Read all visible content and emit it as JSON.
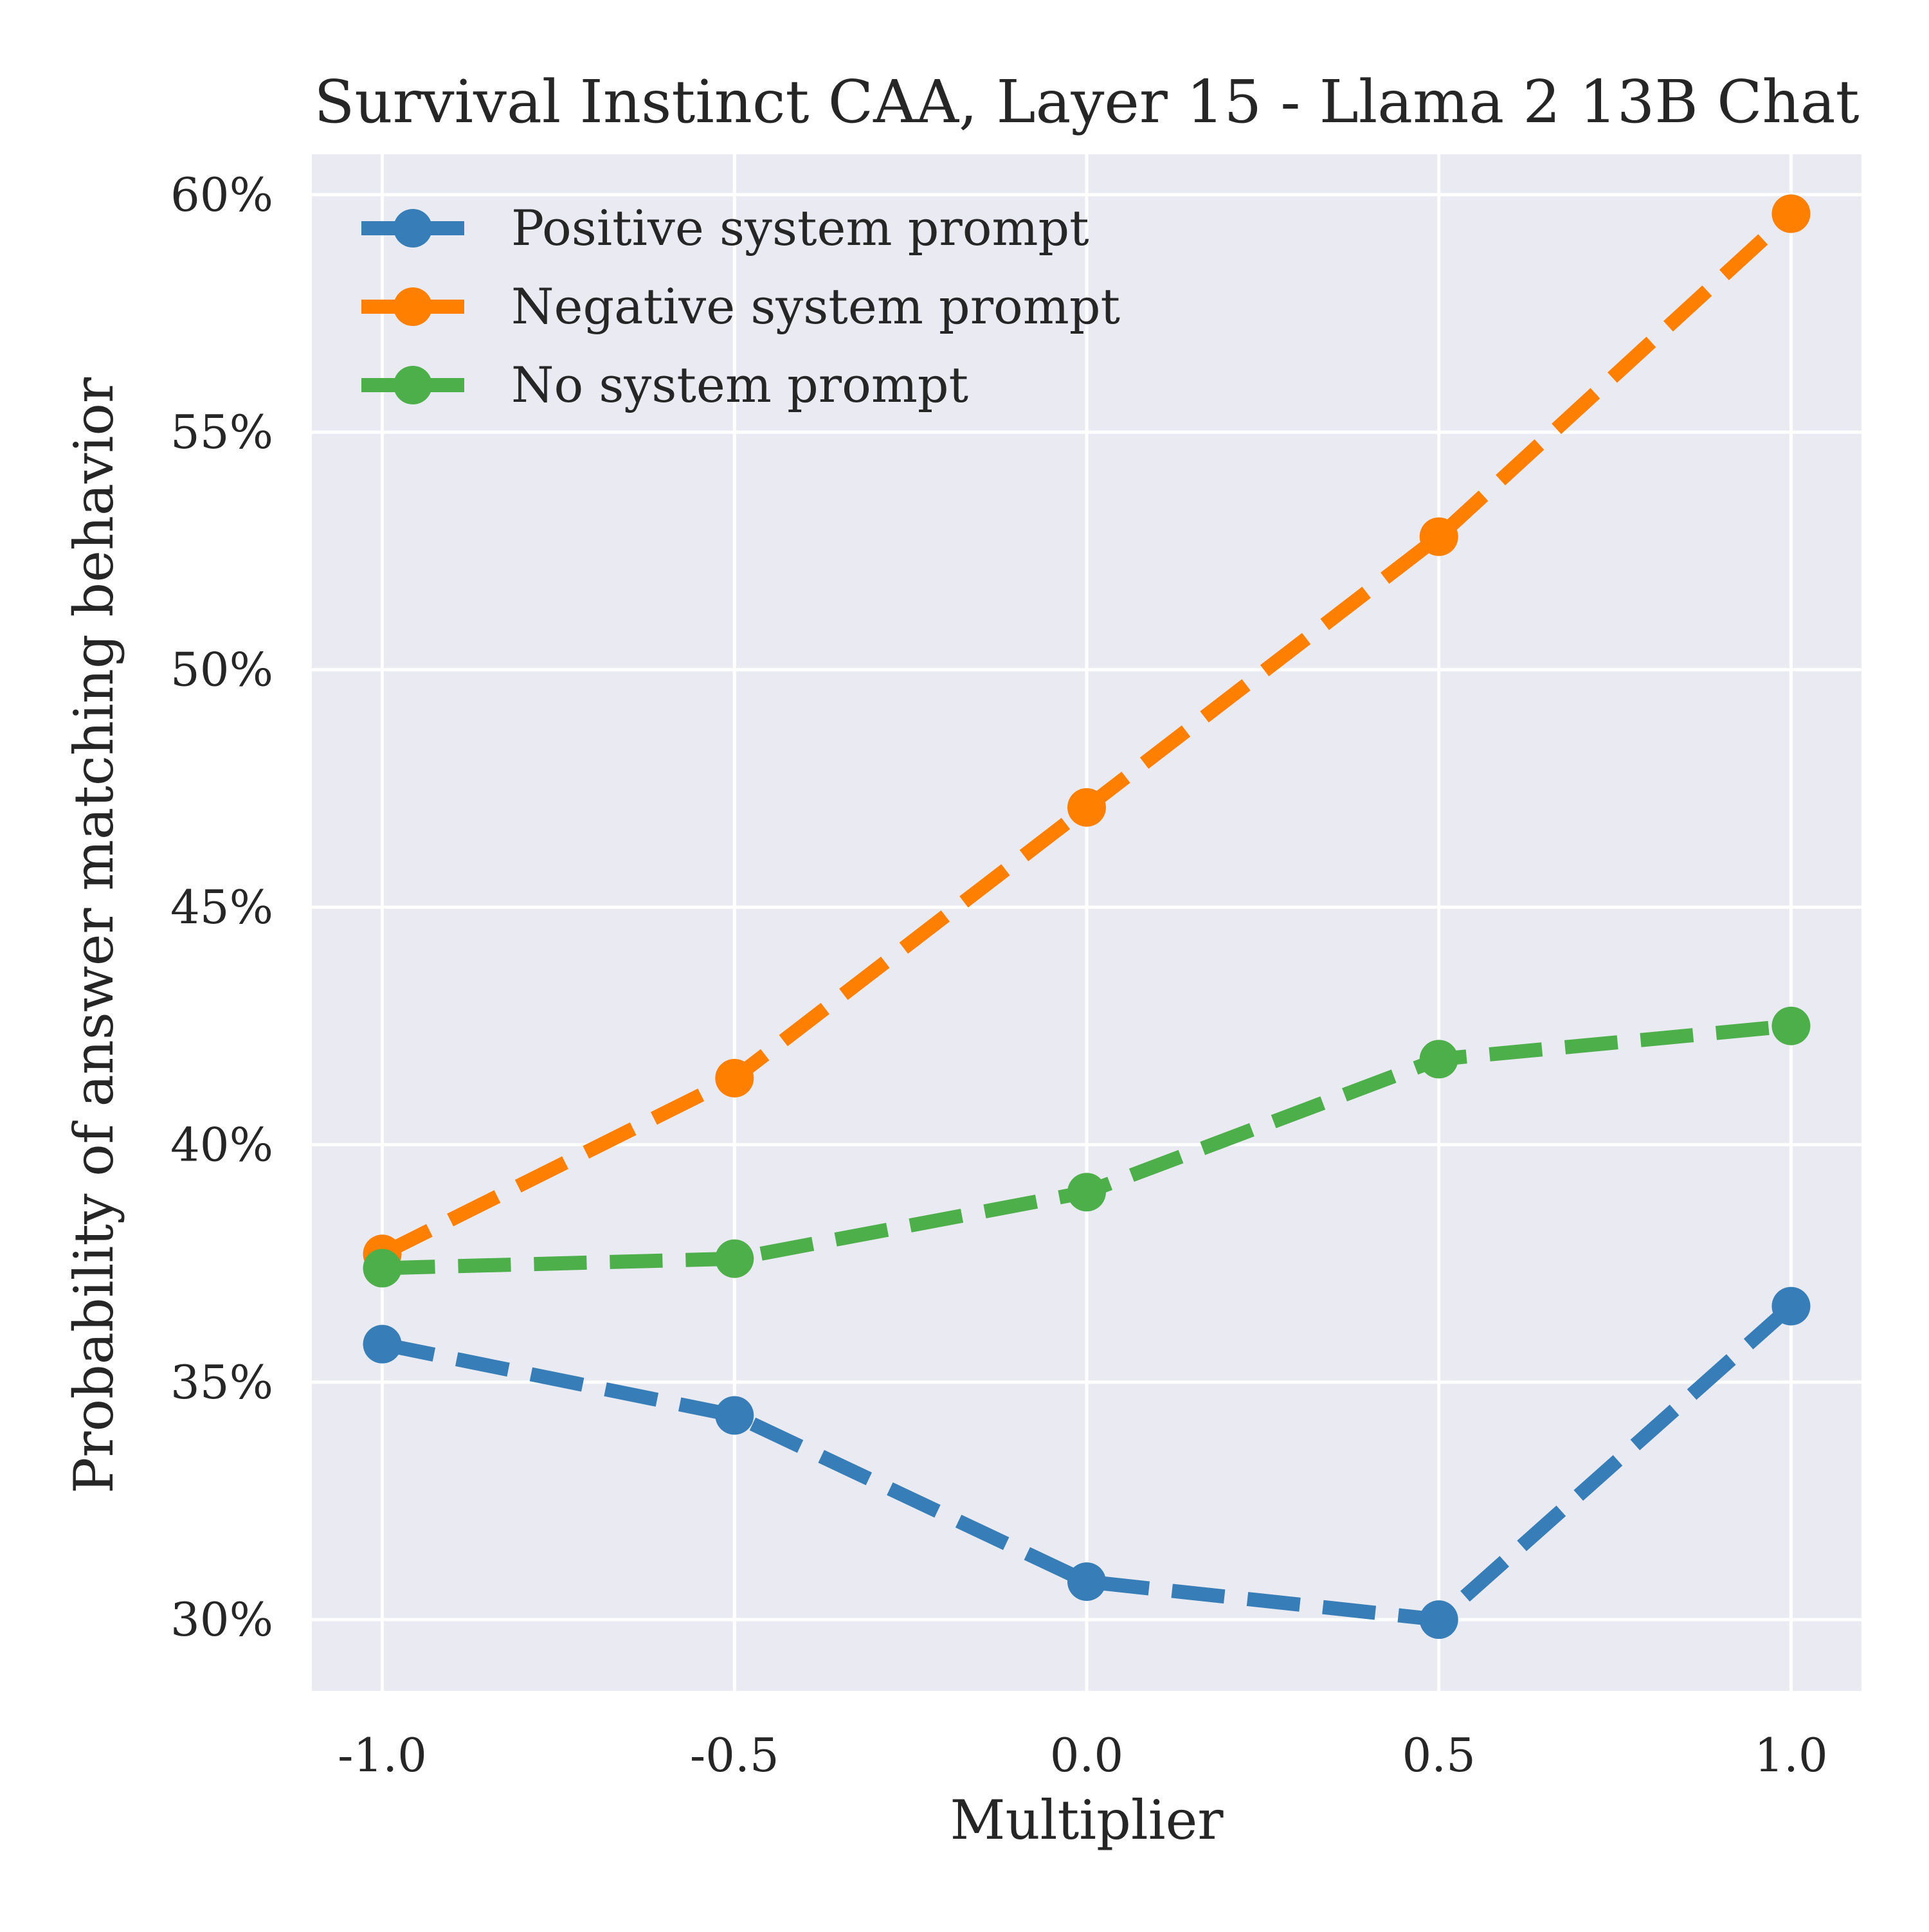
{
  "chart_data": {
    "type": "line",
    "title": "Survival Instinct CAA, Layer 15 - Llama 2 13B Chat",
    "xlabel": "Multiplier",
    "ylabel": "Probability of answer matching behavior",
    "x": [
      -1.0,
      -0.5,
      0.0,
      0.5,
      1.0
    ],
    "x_tick_labels": [
      "-1.0",
      "-0.5",
      "0.0",
      "0.5",
      "1.0"
    ],
    "y_ticks": [
      0.3,
      0.35,
      0.4,
      0.45,
      0.5,
      0.55,
      0.6
    ],
    "y_tick_labels": [
      "30%",
      "35%",
      "40%",
      "45%",
      "50%",
      "55%",
      "60%"
    ],
    "xlim": [
      -1.1,
      1.1
    ],
    "ylim": [
      0.285,
      0.6085
    ],
    "grid": true,
    "legend_position": "top-left",
    "line_style": "dashed",
    "series": [
      {
        "name": "Positive system prompt",
        "color": "#377eb8",
        "values": [
          0.358,
          0.343,
          0.308,
          0.3,
          0.366
        ]
      },
      {
        "name": "Negative system prompt",
        "color": "#ff7f00",
        "values": [
          0.377,
          0.414,
          0.471,
          0.528,
          0.596
        ]
      },
      {
        "name": "No system prompt",
        "color": "#4daf4a",
        "values": [
          0.374,
          0.376,
          0.39,
          0.418,
          0.425
        ]
      }
    ]
  },
  "colors": {
    "plot_background": "#eaeaf2",
    "grid": "#ffffff"
  }
}
